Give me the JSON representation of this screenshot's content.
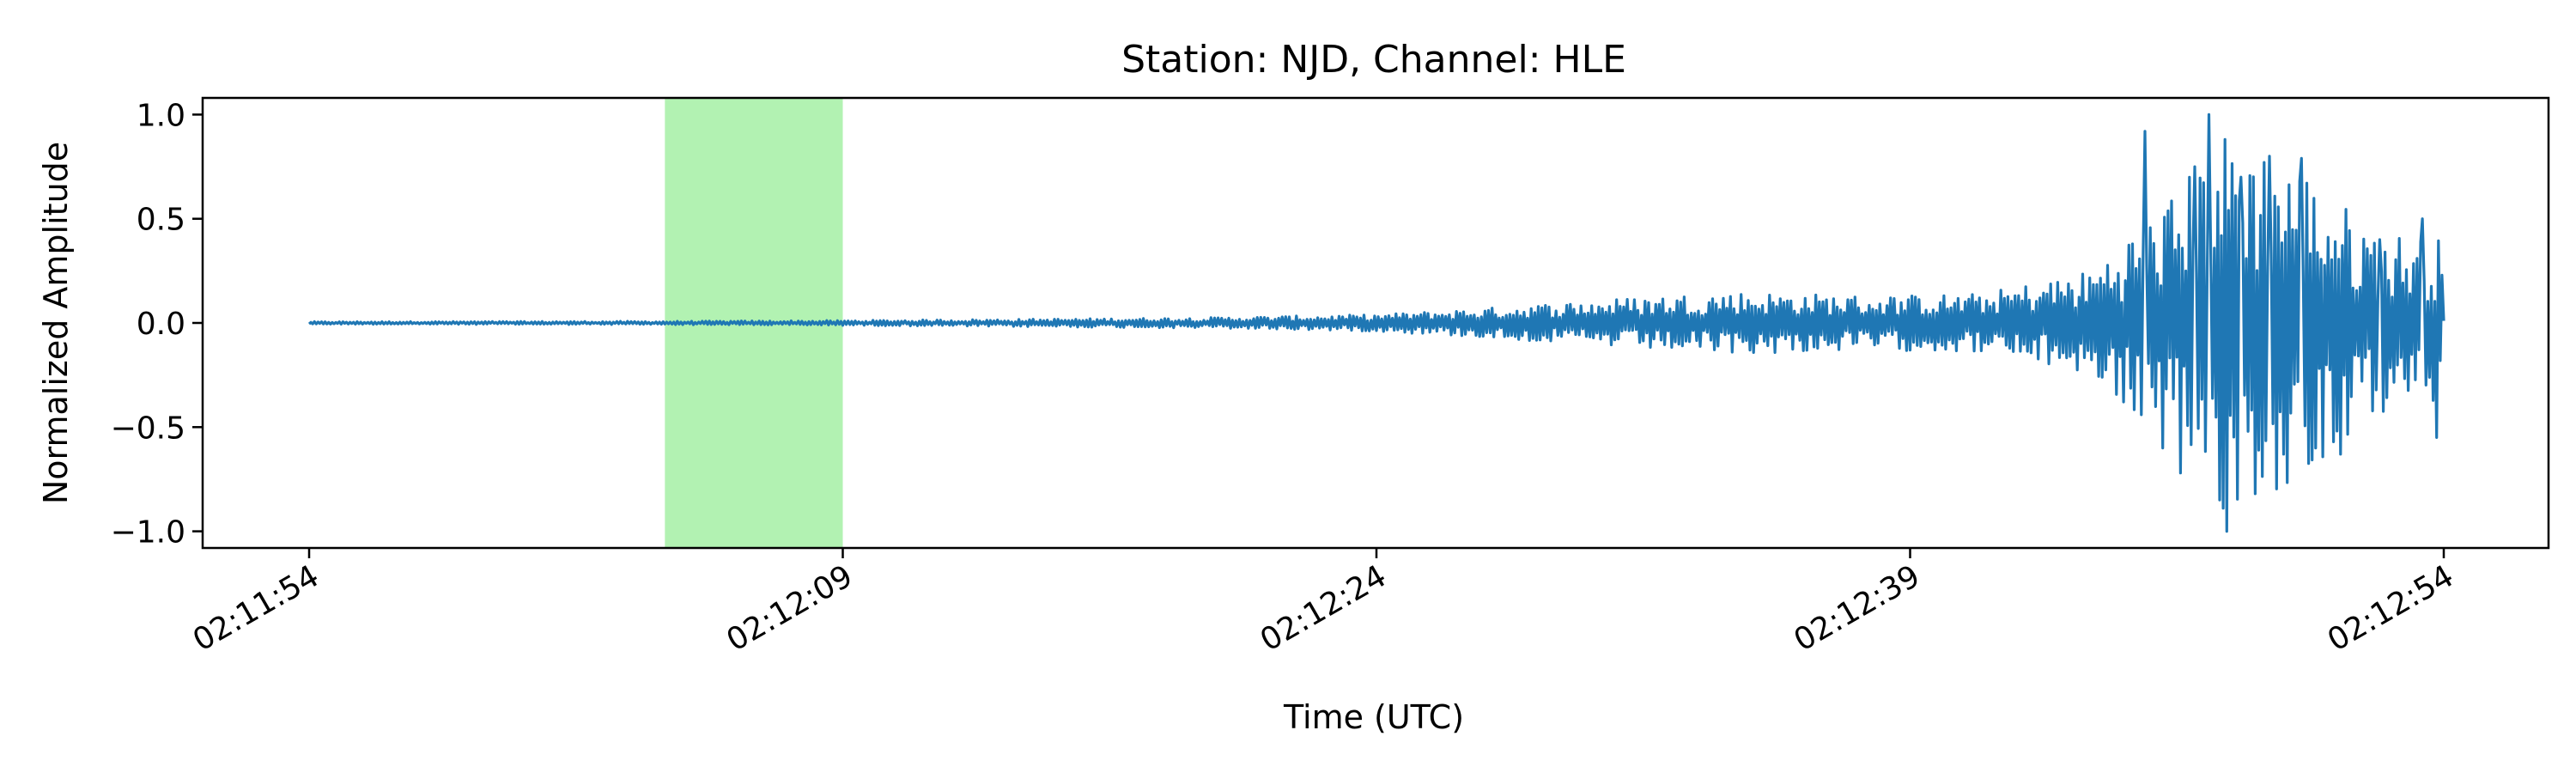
{
  "chart_data": {
    "type": "line",
    "title": "Station: NJD, Channel: HLE",
    "xlabel": "Time (UTC)",
    "ylabel": "Normalized Amplitude",
    "x_range_seconds": [
      0,
      60
    ],
    "ylim": [
      -1.08,
      1.08
    ],
    "x_ticks": [
      {
        "t": 0,
        "label": "02:11:54"
      },
      {
        "t": 15,
        "label": "02:12:09"
      },
      {
        "t": 30,
        "label": "02:12:24"
      },
      {
        "t": 45,
        "label": "02:12:39"
      },
      {
        "t": 60,
        "label": "02:12:54"
      }
    ],
    "y_ticks": [
      {
        "v": 1.0,
        "label": "1.0"
      },
      {
        "v": 0.5,
        "label": "0.5"
      },
      {
        "v": 0.0,
        "label": "0.0"
      },
      {
        "v": -0.5,
        "label": "−0.5"
      },
      {
        "v": -1.0,
        "label": "−1.0"
      }
    ],
    "highlight_window": {
      "start": 10,
      "end": 15,
      "color": "#b2f2b2"
    },
    "series": [
      {
        "color": "#1f77b4",
        "envelope": [
          {
            "t": 0,
            "amp": 0.006
          },
          {
            "t": 10,
            "amp": 0.008
          },
          {
            "t": 15,
            "amp": 0.012
          },
          {
            "t": 20,
            "amp": 0.018
          },
          {
            "t": 25,
            "amp": 0.025
          },
          {
            "t": 30,
            "amp": 0.04
          },
          {
            "t": 33,
            "amp": 0.07
          },
          {
            "t": 37,
            "amp": 0.12
          },
          {
            "t": 40,
            "amp": 0.15
          },
          {
            "t": 44,
            "amp": 0.13
          },
          {
            "t": 47,
            "amp": 0.14
          },
          {
            "t": 50,
            "amp": 0.25
          },
          {
            "t": 52,
            "amp": 0.55
          },
          {
            "t": 54,
            "amp": 0.95
          },
          {
            "t": 56,
            "amp": 0.75
          },
          {
            "t": 58,
            "amp": 0.45
          },
          {
            "t": 60,
            "amp": 0.4
          }
        ],
        "peaks": [
          {
            "t": 51.6,
            "v": 0.92
          },
          {
            "t": 52.1,
            "v": -0.6
          },
          {
            "t": 52.6,
            "v": -0.72
          },
          {
            "t": 53.0,
            "v": 0.75
          },
          {
            "t": 53.4,
            "v": 1.0
          },
          {
            "t": 53.9,
            "v": -1.0
          },
          {
            "t": 54.3,
            "v": 0.7
          },
          {
            "t": 54.7,
            "v": -0.82
          },
          {
            "t": 55.1,
            "v": 0.8
          },
          {
            "t": 55.5,
            "v": -0.63
          },
          {
            "t": 56.0,
            "v": 0.79
          },
          {
            "t": 56.4,
            "v": -0.6
          },
          {
            "t": 57.1,
            "v": -0.63
          },
          {
            "t": 58.2,
            "v": 0.4
          },
          {
            "t": 59.4,
            "v": 0.5
          },
          {
            "t": 59.8,
            "v": -0.55
          },
          {
            "t": 60.0,
            "v": 0.01
          }
        ]
      }
    ]
  }
}
